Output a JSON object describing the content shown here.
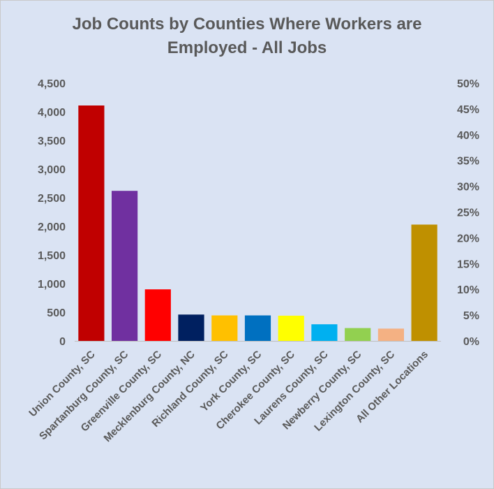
{
  "chart_data": {
    "type": "bar",
    "title_line1": "Job Counts by Counties Where Workers are",
    "title_line2": "Employed - All Jobs",
    "categories": [
      "Union County, SC",
      "Spartanburg County, SC",
      "Greenville County, SC",
      "Mecklenburg County, NC",
      "Richland County, SC",
      "York County, SC",
      "Cherokee County, SC",
      "Laurens County, SC",
      "Newberry County, SC",
      "Lexington County, SC",
      "All Other Locations"
    ],
    "values": [
      4110,
      2620,
      900,
      460,
      445,
      445,
      440,
      290,
      225,
      215,
      2030
    ],
    "colors": [
      "#c00000",
      "#7030a0",
      "#ff0000",
      "#002060",
      "#ffc000",
      "#0070c0",
      "#ffff00",
      "#00b0f0",
      "#92d050",
      "#f4b183",
      "#bf9000"
    ],
    "ylim": [
      0,
      4500
    ],
    "y_ticks": [
      "0",
      "500",
      "1,000",
      "1,500",
      "2,000",
      "2,500",
      "3,000",
      "3,500",
      "4,000",
      "4,500"
    ],
    "y2lim": [
      0,
      0.5
    ],
    "y2_ticks": [
      "0%",
      "5%",
      "10%",
      "15%",
      "20%",
      "25%",
      "30%",
      "35%",
      "40%",
      "45%",
      "50%"
    ],
    "grid": false,
    "legend": "none"
  }
}
